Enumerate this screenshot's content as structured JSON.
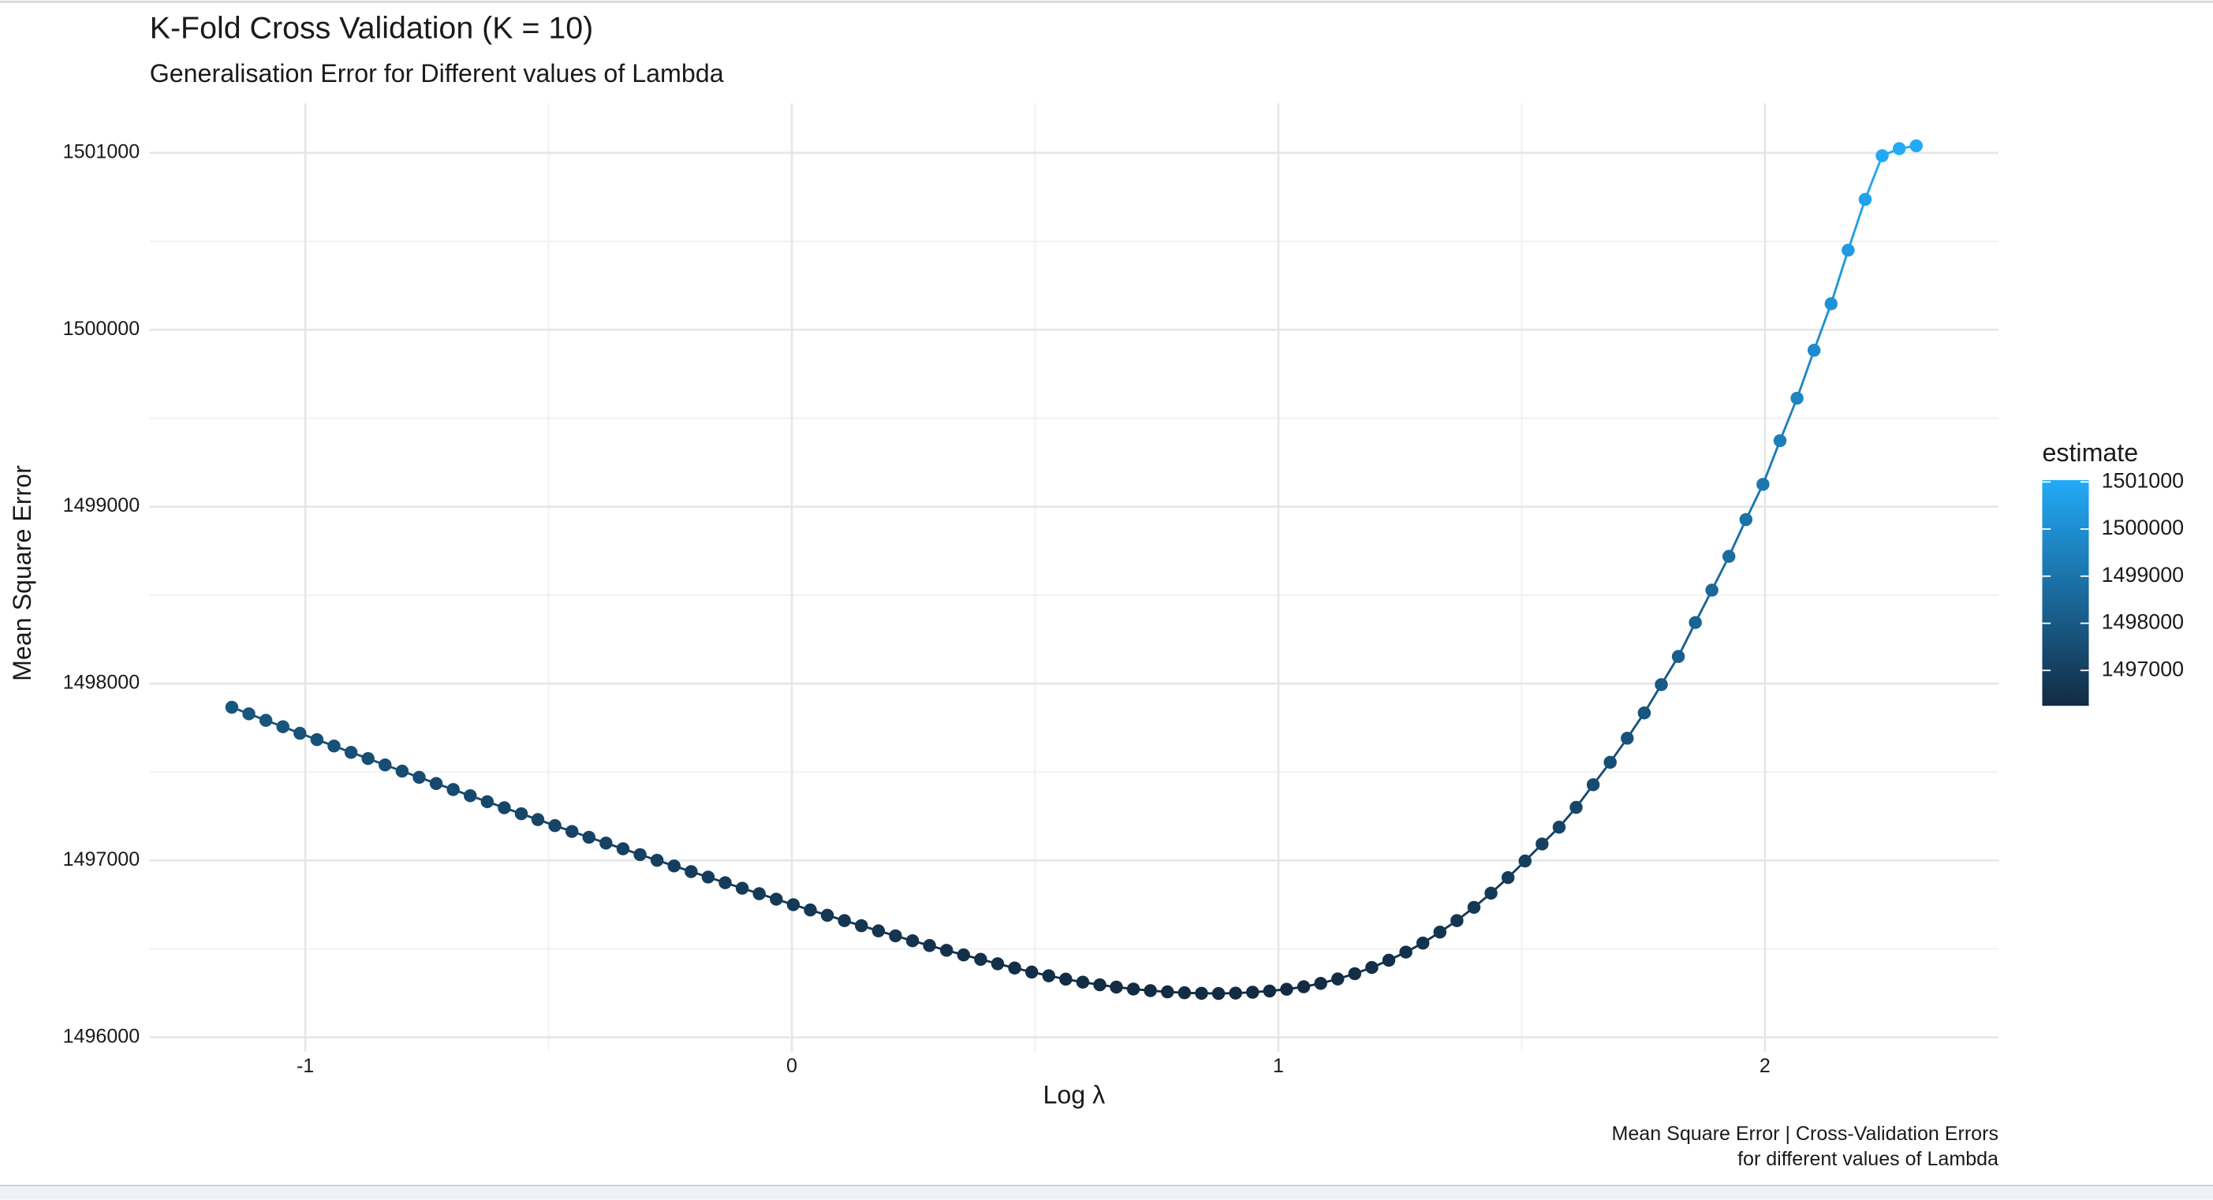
{
  "chart_data": {
    "type": "line",
    "title": "K-Fold Cross Validation (K = 10)",
    "subtitle": "Generalisation Error for Different values of Lambda",
    "x_label": "Log λ",
    "y_label": "Mean Square Error",
    "caption": [
      "Mean Square Error | Cross-Validation Errors",
      "for different values of Lambda"
    ],
    "legend_title": "estimate",
    "legend_ticks": [
      1497000,
      1498000,
      1499000,
      1500000,
      1501000
    ],
    "color_low": "#132B43",
    "color_high": "#22AAF8",
    "grid": true,
    "xlim": [
      -1.32,
      2.48
    ],
    "xticks": [
      -1,
      0,
      1,
      2
    ],
    "ylim": [
      1495920,
      1501280
    ],
    "yticks": [
      1496000,
      1497000,
      1498000,
      1499000,
      1500000,
      1501000
    ],
    "x": [
      -1.151,
      -1.116,
      -1.081,
      -1.046,
      -1.011,
      -0.976,
      -0.941,
      -0.906,
      -0.871,
      -0.836,
      -0.801,
      -0.766,
      -0.731,
      -0.696,
      -0.661,
      -0.626,
      -0.591,
      -0.556,
      -0.522,
      -0.487,
      -0.452,
      -0.417,
      -0.382,
      -0.347,
      -0.312,
      -0.277,
      -0.242,
      -0.207,
      -0.172,
      -0.137,
      -0.102,
      -0.067,
      -0.032,
      0.003,
      0.038,
      0.073,
      0.108,
      0.143,
      0.178,
      0.213,
      0.248,
      0.283,
      0.318,
      0.353,
      0.388,
      0.423,
      0.458,
      0.493,
      0.528,
      0.563,
      0.598,
      0.633,
      0.667,
      0.702,
      0.737,
      0.772,
      0.807,
      0.842,
      0.877,
      0.912,
      0.947,
      0.982,
      1.017,
      1.052,
      1.087,
      1.122,
      1.157,
      1.192,
      1.227,
      1.262,
      1.297,
      1.332,
      1.367,
      1.402,
      1.437,
      1.472,
      1.507,
      1.542,
      1.577,
      1.612,
      1.647,
      1.682,
      1.717,
      1.752,
      1.787,
      1.822,
      1.857,
      1.891,
      1.926,
      1.961,
      1.996,
      2.031,
      2.066,
      2.101,
      2.136,
      2.171,
      2.206,
      2.241,
      2.276,
      2.311
    ],
    "series": [
      {
        "name": "estimate",
        "values": [
          1497866,
          1497829,
          1497792,
          1497756,
          1497719,
          1497683,
          1497647,
          1497611,
          1497576,
          1497540,
          1497505,
          1497470,
          1497435,
          1497401,
          1497366,
          1497332,
          1497298,
          1497264,
          1497231,
          1497197,
          1497164,
          1497131,
          1497098,
          1497066,
          1497033,
          1497001,
          1496969,
          1496937,
          1496906,
          1496874,
          1496843,
          1496812,
          1496781,
          1496750,
          1496720,
          1496690,
          1496660,
          1496631,
          1496602,
          1496574,
          1496546,
          1496519,
          1496492,
          1496466,
          1496441,
          1496416,
          1496392,
          1496369,
          1496348,
          1496329,
          1496312,
          1496297,
          1496284,
          1496273,
          1496264,
          1496257,
          1496252,
          1496249,
          1496248,
          1496250,
          1496255,
          1496262,
          1496272,
          1496286,
          1496305,
          1496330,
          1496360,
          1496395,
          1496436,
          1496482,
          1496533,
          1496595,
          1496660,
          1496735,
          1496815,
          1496903,
          1496997,
          1497093,
          1497188,
          1497300,
          1497428,
          1497555,
          1497691,
          1497834,
          1497994,
          1498153,
          1498345,
          1498528,
          1498719,
          1498927,
          1499126,
          1499373,
          1499613,
          1499884,
          1500147,
          1500450,
          1500737,
          1500984,
          1501024,
          1501040
        ]
      }
    ]
  }
}
